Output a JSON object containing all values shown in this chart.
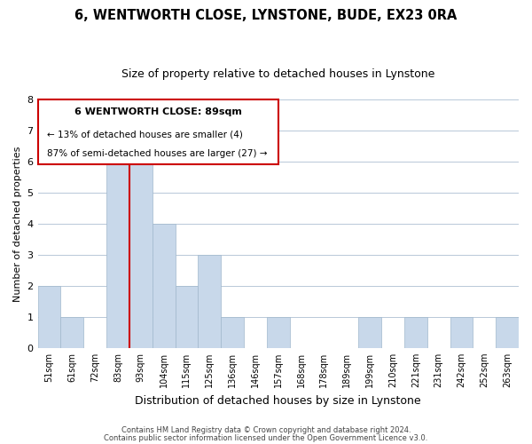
{
  "title": "6, WENTWORTH CLOSE, LYNSTONE, BUDE, EX23 0RA",
  "subtitle": "Size of property relative to detached houses in Lynstone",
  "xlabel": "Distribution of detached houses by size in Lynstone",
  "ylabel": "Number of detached properties",
  "bin_labels": [
    "51sqm",
    "61sqm",
    "72sqm",
    "83sqm",
    "93sqm",
    "104sqm",
    "115sqm",
    "125sqm",
    "136sqm",
    "146sqm",
    "157sqm",
    "168sqm",
    "178sqm",
    "189sqm",
    "199sqm",
    "210sqm",
    "221sqm",
    "231sqm",
    "242sqm",
    "252sqm",
    "263sqm"
  ],
  "bar_heights": [
    2,
    1,
    0,
    6,
    7,
    4,
    2,
    3,
    1,
    0,
    1,
    0,
    0,
    0,
    1,
    0,
    1,
    0,
    1,
    0,
    1
  ],
  "bar_color": "#c8d8ea",
  "highlight_bar_color": "#cc0000",
  "highlight_bar_index": 3,
  "ylim": [
    0,
    8
  ],
  "yticks": [
    0,
    1,
    2,
    3,
    4,
    5,
    6,
    7,
    8
  ],
  "annotation_title": "6 WENTWORTH CLOSE: 89sqm",
  "annotation_line1": "← 13% of detached houses are smaller (4)",
  "annotation_line2": "87% of semi-detached houses are larger (27) →",
  "footer_line1": "Contains HM Land Registry data © Crown copyright and database right 2024.",
  "footer_line2": "Contains public sector information licensed under the Open Government Licence v3.0.",
  "bg_color": "#ffffff",
  "plot_bg_color": "#ffffff",
  "grid_color": "#b8c8d8",
  "title_fontsize": 10.5,
  "subtitle_fontsize": 9,
  "ylabel_fontsize": 8,
  "xlabel_fontsize": 9
}
